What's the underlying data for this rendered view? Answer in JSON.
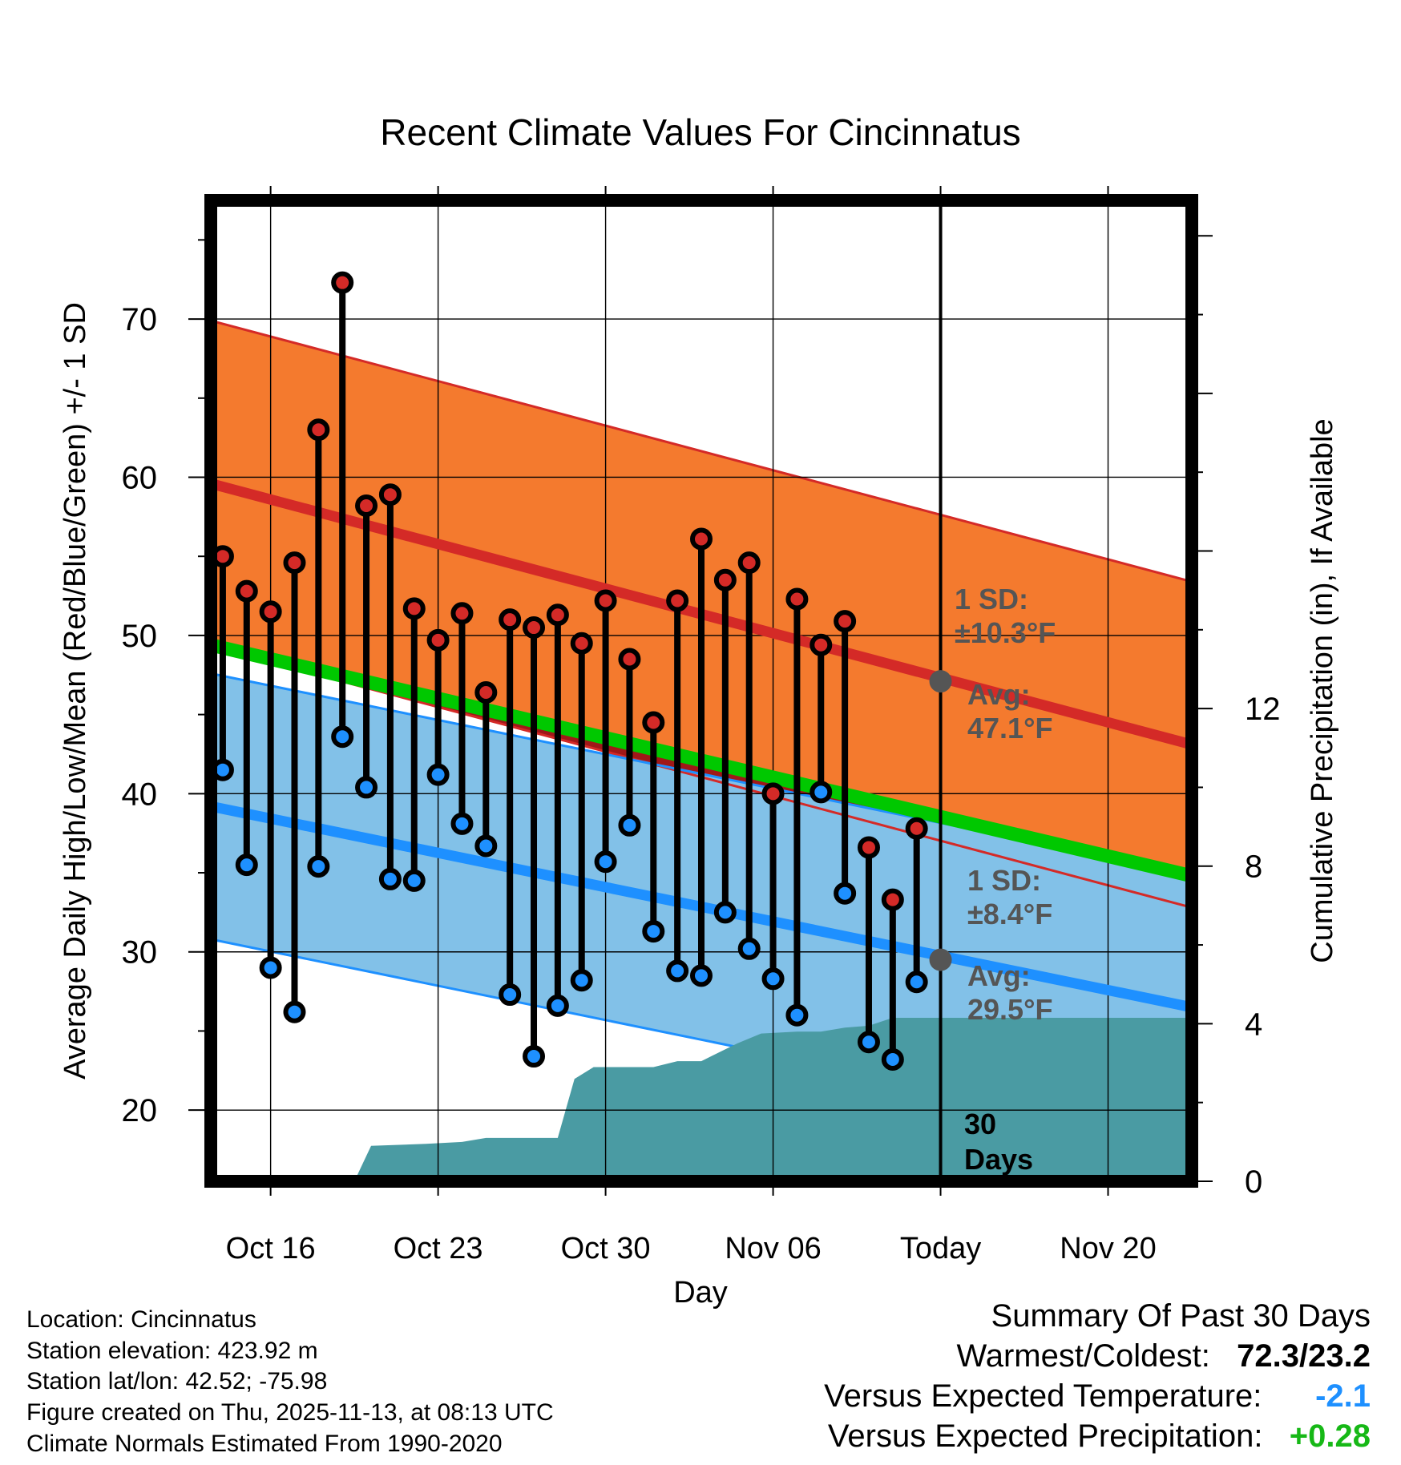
{
  "chart_data": {
    "type": "line",
    "title": "Recent Climate Values For Cincinnatus",
    "xlabel": "Day",
    "ylabel": "Average Daily High/Low/Mean (Red/Blue/Green) +/- 1 SD",
    "ylabel_right": "Cumulative Precipitation (in), If Available",
    "x_tick_labels": [
      "Oct 16",
      "Oct 23",
      "Oct 30",
      "Nov 06",
      "Today",
      "Nov 20"
    ],
    "y_ticks": [
      "20",
      "30",
      "40",
      "50",
      "60",
      "70"
    ],
    "y2_ticks": [
      "0",
      "4",
      "8",
      "12"
    ],
    "xlim_days": [
      -0.5,
      40.5
    ],
    "ylim": [
      15.5,
      77.5
    ],
    "y2lim": [
      0,
      24.9
    ],
    "today_day": 30,
    "normals": {
      "high_mean": [
        59.6,
        43.1
      ],
      "high_sd": 10.3,
      "low_mean": [
        39.2,
        26.5
      ],
      "low_sd": 8.4,
      "mean": [
        49.4,
        34.8
      ]
    },
    "series": [
      {
        "name": "Daily High",
        "color": "#d42a27",
        "values": [
          55.0,
          52.8,
          51.5,
          54.6,
          63.0,
          72.3,
          58.2,
          58.9,
          51.7,
          49.7,
          51.4,
          46.4,
          51.0,
          50.5,
          51.3,
          49.5,
          52.2,
          48.5,
          44.5,
          52.2,
          56.1,
          53.5,
          54.6,
          40.0,
          52.3,
          49.4,
          50.9,
          36.6,
          33.3,
          37.8
        ]
      },
      {
        "name": "Daily Low",
        "color": "#1e90ff",
        "values": [
          41.5,
          35.5,
          29.0,
          26.2,
          35.4,
          43.6,
          40.4,
          34.6,
          34.5,
          41.2,
          38.1,
          36.7,
          27.3,
          23.4,
          26.6,
          28.2,
          35.7,
          38.0,
          31.3,
          28.8,
          28.5,
          32.5,
          30.2,
          28.3,
          26.0,
          40.1,
          33.7,
          24.3,
          23.2,
          28.1
        ]
      }
    ],
    "precip_cumulative": [
      [
        5.5,
        0
      ],
      [
        6.2,
        0.9
      ],
      [
        8.5,
        0.95
      ],
      [
        10.0,
        1.0
      ],
      [
        11.0,
        1.1
      ],
      [
        14.0,
        1.1
      ],
      [
        14.7,
        2.6
      ],
      [
        15.5,
        2.9
      ],
      [
        18.0,
        2.9
      ],
      [
        19.0,
        3.05
      ],
      [
        20.0,
        3.05
      ],
      [
        21.5,
        3.5
      ],
      [
        22.5,
        3.75
      ],
      [
        24.0,
        3.8
      ],
      [
        25.0,
        3.8
      ],
      [
        26.0,
        3.9
      ],
      [
        27.0,
        3.95
      ],
      [
        28.0,
        4.15
      ],
      [
        29.0,
        4.15
      ],
      [
        40.5,
        4.15
      ]
    ],
    "annotations": {
      "high_sd": "1 SD:",
      "high_sd_val": "±10.3°F",
      "high_avg": "Avg:",
      "high_avg_val": "47.1°F",
      "low_sd": "1 SD:",
      "low_sd_val": "±8.4°F",
      "low_avg": "Avg:",
      "low_avg_val": "29.5°F",
      "days_num": "30",
      "days_word": "Days"
    },
    "colors": {
      "high_band": "#f47a2e",
      "high_line": "#d42a27",
      "low_band": "#82c1e8",
      "low_line": "#1e90ff",
      "mean_line": "#00c800",
      "precip": "#4a9ba3",
      "dark_red_wedge": "#a01818",
      "annotation": "#555555",
      "avg_marker": "#555555"
    }
  },
  "station": {
    "location": "Location: Cincinnatus",
    "elevation": "Station elevation: 423.92 m",
    "latlon": "Station lat/lon: 42.52; -75.98",
    "created": "Figure created on Thu, 2025-11-13, at 08:13 UTC",
    "normals": "Climate Normals Estimated From 1990-2020"
  },
  "summary": {
    "title": "Summary Of Past 30 Days",
    "warm_label": "Warmest/Coldest:",
    "warm_value": "72.3/23.2",
    "temp_label": "Versus Expected Temperature:",
    "temp_value": "-2.1",
    "temp_color": "#1e90ff",
    "precip_label": "Versus Expected Precipitation:",
    "precip_value": "+0.28",
    "precip_color": "#16b816"
  }
}
